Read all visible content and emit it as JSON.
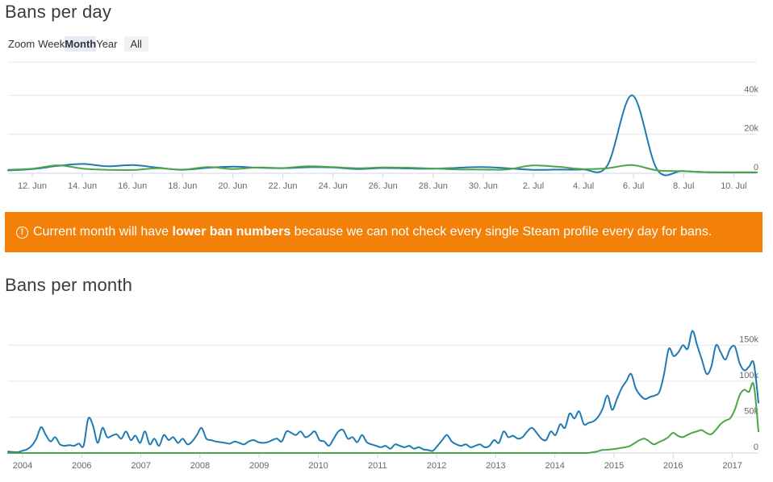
{
  "page": {
    "day_title": "Bans per day",
    "month_title": "Bans per month"
  },
  "zoom": {
    "label": "Zoom",
    "buttons": [
      {
        "label": "Week",
        "active": false
      },
      {
        "label": "Month",
        "active": true
      },
      {
        "label": "Year",
        "active": false
      },
      {
        "label": "All",
        "active": false
      }
    ]
  },
  "notice": {
    "icon": "exclamation-circle-icon",
    "text_before": "Current month will have ",
    "text_bold": "lower ban numbers",
    "text_after": " because we can not check every single Steam profile every day for bans.",
    "background": "#f38109"
  },
  "chart_data": [
    {
      "type": "line",
      "title": "Bans per day",
      "x": [
        "11. Jun",
        "12. Jun",
        "13. Jun",
        "14. Jun",
        "15. Jun",
        "16. Jun",
        "17. Jun",
        "18. Jun",
        "19. Jun",
        "20. Jun",
        "21. Jun",
        "22. Jun",
        "23. Jun",
        "24. Jun",
        "25. Jun",
        "26. Jun",
        "27. Jun",
        "28. Jun",
        "29. Jun",
        "30. Jun",
        "1. Jul",
        "2. Jul",
        "3. Jul",
        "4. Jul",
        "5. Jul",
        "6. Jul",
        "7. Jul",
        "8. Jul",
        "9. Jul",
        "10. Jul",
        "11. Jul"
      ],
      "x_tick_labels": [
        "12. Jun",
        "14. Jun",
        "16. Jun",
        "18. Jun",
        "20. Jun",
        "22. Jun",
        "24. Jun",
        "26. Jun",
        "28. Jun",
        "30. Jun",
        "2. Jul",
        "4. Jul",
        "6. Jul",
        "8. Jul",
        "10. Jul"
      ],
      "y_tick_labels": [
        "0",
        "20k",
        "40k"
      ],
      "ylim": [
        0,
        60000
      ],
      "series": [
        {
          "color": "#1f7ab3",
          "values": [
            1500,
            2200,
            3800,
            4800,
            3600,
            4200,
            2900,
            1800,
            2800,
            3400,
            2900,
            2600,
            3100,
            3000,
            2200,
            2700,
            2500,
            2300,
            2800,
            3200,
            2600,
            1800,
            1900,
            2000,
            3800,
            40000,
            2000,
            1200,
            600,
            400,
            400
          ]
        },
        {
          "color": "#4ea449",
          "values": [
            1800,
            2400,
            4100,
            2400,
            1800,
            1700,
            2600,
            1900,
            3200,
            2200,
            3000,
            2700,
            3600,
            3200,
            2600,
            3000,
            2900,
            2500,
            2000,
            1900,
            2000,
            4000,
            3400,
            2200,
            2600,
            4200,
            1500,
            1100,
            600,
            500,
            500
          ]
        }
      ]
    },
    {
      "type": "line",
      "title": "Bans per month",
      "x_tick_labels": [
        "2004",
        "2006",
        "2007",
        "2008",
        "2009",
        "2010",
        "2011",
        "2012",
        "2013",
        "2014",
        "2015",
        "2016",
        "2017"
      ],
      "y_tick_labels": [
        "0",
        "50k",
        "100k",
        "150k"
      ],
      "ylim": [
        0,
        175000
      ],
      "series": [
        {
          "color": "#1f7ab3",
          "values": [
            2000,
            1500,
            1000,
            3000,
            5000,
            10000,
            20000,
            36000,
            25000,
            16000,
            22000,
            12000,
            10000,
            11000,
            10000,
            13000,
            10000,
            48000,
            38000,
            14000,
            35000,
            22000,
            24000,
            26000,
            20000,
            30000,
            18000,
            24000,
            14000,
            30000,
            12000,
            20000,
            10000,
            25000,
            18000,
            22000,
            14000,
            20000,
            12000,
            16000,
            25000,
            35000,
            20000,
            18000,
            16000,
            15000,
            14000,
            13000,
            16000,
            14000,
            12000,
            16000,
            18000,
            15000,
            14000,
            15000,
            18000,
            20000,
            16000,
            30000,
            28000,
            25000,
            30000,
            22000,
            25000,
            30000,
            18000,
            16000,
            10000,
            20000,
            30000,
            32000,
            20000,
            22000,
            15000,
            25000,
            15000,
            12000,
            10000,
            8000,
            10000,
            6000,
            12000,
            10000,
            8000,
            10000,
            6000,
            8000,
            5000,
            4000,
            3000,
            10000,
            18000,
            25000,
            16000,
            12000,
            10000,
            12000,
            8000,
            10000,
            12000,
            8000,
            10000,
            18000,
            14000,
            30000,
            22000,
            24000,
            20000,
            22000,
            30000,
            35000,
            28000,
            20000,
            18000,
            30000,
            25000,
            40000,
            35000,
            55000,
            48000,
            58000,
            40000,
            42000,
            44000,
            50000,
            62000,
            80000,
            60000,
            75000,
            90000,
            100000,
            110000,
            90000,
            80000,
            75000,
            78000,
            80000,
            85000,
            110000,
            145000,
            135000,
            140000,
            150000,
            145000,
            170000,
            150000,
            130000,
            110000,
            120000,
            150000,
            140000,
            130000,
            145000,
            148000,
            125000,
            115000,
            120000,
            125000,
            70000
          ]
        },
        {
          "color": "#4ea449",
          "values": [
            0,
            0,
            0,
            0,
            0,
            0,
            0,
            0,
            0,
            0,
            0,
            0,
            0,
            0,
            0,
            0,
            0,
            0,
            0,
            0,
            0,
            0,
            0,
            0,
            0,
            0,
            0,
            0,
            0,
            0,
            0,
            0,
            0,
            0,
            0,
            0,
            0,
            0,
            0,
            0,
            0,
            0,
            0,
            0,
            0,
            0,
            0,
            0,
            0,
            0,
            0,
            0,
            0,
            0,
            0,
            0,
            0,
            0,
            0,
            0,
            0,
            0,
            0,
            0,
            0,
            0,
            0,
            0,
            0,
            0,
            0,
            0,
            0,
            0,
            0,
            0,
            0,
            0,
            0,
            0,
            0,
            0,
            0,
            0,
            0,
            0,
            0,
            0,
            0,
            0,
            0,
            0,
            0,
            0,
            0,
            0,
            0,
            0,
            0,
            0,
            0,
            0,
            0,
            0,
            0,
            0,
            0,
            0,
            0,
            0,
            0,
            0,
            0,
            0,
            0,
            0,
            0,
            0,
            0,
            0,
            0,
            0,
            0,
            1000,
            2000,
            4000,
            4500,
            5000,
            6000,
            7000,
            8000,
            10000,
            14000,
            18000,
            20000,
            16000,
            12000,
            15000,
            18000,
            22000,
            28000,
            24000,
            22000,
            25000,
            28000,
            30000,
            32000,
            28000,
            26000,
            32000,
            40000,
            45000,
            48000,
            60000,
            80000,
            88000,
            85000,
            95000,
            30000
          ]
        }
      ]
    }
  ]
}
